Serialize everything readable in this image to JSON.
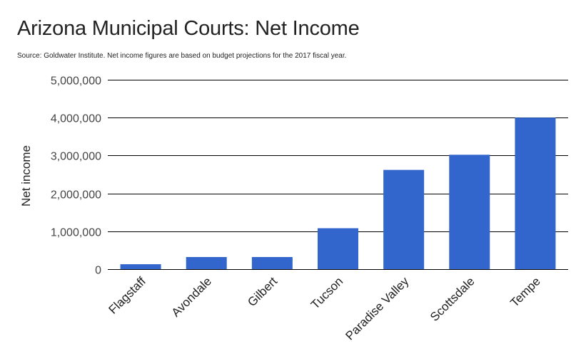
{
  "chart_data": {
    "type": "bar",
    "title": "Arizona Municipal Courts: Net Income",
    "subtitle": "Source: Goldwater Institute. Net income figures are based on budget projections for the 2017 fiscal year.",
    "xlabel": "",
    "ylabel": "Net income",
    "categories": [
      "Flagstaff",
      "Avondale",
      "Gilbert",
      "Tucson",
      "Paradise Valley",
      "Scottsdale",
      "Tempe"
    ],
    "values": [
      130000,
      320000,
      320000,
      1080000,
      2620000,
      3020000,
      4000000
    ],
    "ylim": [
      0,
      5000000
    ],
    "yticks": [
      0,
      1000000,
      2000000,
      3000000,
      4000000,
      5000000
    ],
    "ytick_labels": [
      "0",
      "1,000,000",
      "2,000,000",
      "3,000,000",
      "4,000,000",
      "5,000,000"
    ],
    "grid": true,
    "legend": "none",
    "bar_color": "#3366cc"
  }
}
